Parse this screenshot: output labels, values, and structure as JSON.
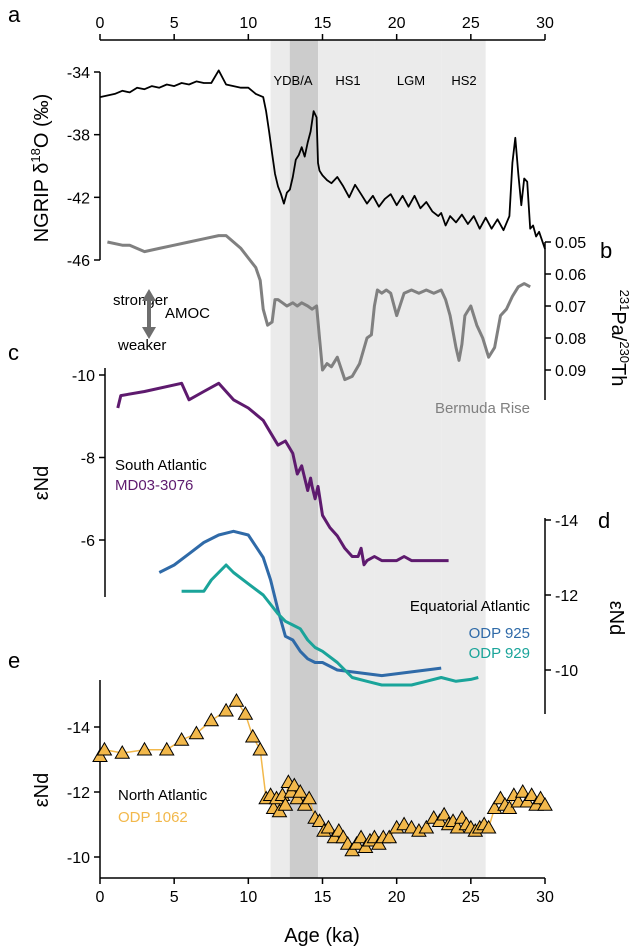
{
  "colors": {
    "ngrip": "#000000",
    "bermuda": "#808080",
    "md03": "#5e1a6e",
    "odp925": "#2f6aa8",
    "odp929": "#1aa49a",
    "odp1062": "#f2b84b",
    "band_light": "#ebebeb",
    "band_dark": "#cccccc",
    "arrow": "#6e6e6e"
  },
  "chart_data": {
    "x_axis": {
      "type": "linear",
      "range": [
        0,
        30
      ],
      "ticks": [
        0,
        5,
        10,
        15,
        20,
        25,
        30
      ],
      "tick_labels": [
        "0",
        "5",
        "10",
        "15",
        "20",
        "25",
        "30"
      ],
      "label": "Age (ka)",
      "top_ticks": true
    },
    "periods": [
      {
        "label": "YDB/A",
        "from": 11.5,
        "to": 14.7,
        "dark_from": 12.8,
        "dark_to": 14.7
      },
      {
        "label": "HS1",
        "from": 14.7,
        "to": 18.5
      },
      {
        "label": "LGM",
        "from": 18.5,
        "to": 23
      },
      {
        "label": "HS2",
        "from": 23,
        "to": 26
      }
    ],
    "panels": [
      {
        "letter": "a",
        "type": "line",
        "y_range": [
          -46,
          -34
        ],
        "y_ticks": [
          -34,
          -38,
          -42,
          -46
        ],
        "y_tick_labels": [
          "-34",
          "-38",
          "-42",
          "-46"
        ],
        "ylabel_main": "NGRIP δ",
        "ylabel_sup": "18",
        "ylabel_end": "O (‰)",
        "series": [
          {
            "name": "NGRIP",
            "x": [
              0,
              0.5,
              1,
              1.5,
              2,
              2.5,
              3,
              3.5,
              4,
              4.5,
              5,
              5.5,
              6,
              6.5,
              7,
              7.5,
              8,
              8.5,
              9,
              9.5,
              10,
              10.5,
              11,
              11.2,
              11.4,
              11.6,
              11.8,
              12,
              12.2,
              12.4,
              12.6,
              12.8,
              13,
              13.2,
              13.4,
              13.6,
              13.8,
              14,
              14.2,
              14.4,
              14.6,
              14.7,
              14.8,
              15,
              15.3,
              15.6,
              16,
              16.4,
              16.8,
              17.2,
              17.6,
              18,
              18.4,
              18.8,
              19.2,
              19.6,
              20,
              20.4,
              20.8,
              21.2,
              21.6,
              22,
              22.4,
              22.8,
              23,
              23.3,
              23.6,
              24,
              24.4,
              24.8,
              25.2,
              25.6,
              26,
              26.4,
              26.8,
              27.2,
              27.6,
              27.8,
              28,
              28.2,
              28.4,
              28.6,
              28.8,
              29,
              29.2,
              29.4,
              29.6,
              30
            ],
            "y": [
              -35.6,
              -35.5,
              -35.4,
              -35.2,
              -35.3,
              -35.0,
              -35.1,
              -34.9,
              -35.0,
              -34.8,
              -34.9,
              -34.7,
              -34.8,
              -34.6,
              -34.7,
              -34.7,
              -33.9,
              -34.8,
              -34.9,
              -35.0,
              -35.0,
              -35.4,
              -35.6,
              -36.5,
              -37.8,
              -39.2,
              -40.5,
              -41.3,
              -41.8,
              -42.4,
              -41.7,
              -41.5,
              -40.7,
              -39.6,
              -39.3,
              -38.8,
              -39.4,
              -38.5,
              -37.8,
              -36.5,
              -36.9,
              -39.8,
              -40.3,
              -40.6,
              -40.9,
              -41.1,
              -40.7,
              -41.3,
              -42.0,
              -41.2,
              -41.8,
              -42.4,
              -41.9,
              -42.6,
              -42.1,
              -41.8,
              -42.5,
              -41.9,
              -42.6,
              -41.9,
              -42.7,
              -42.3,
              -42.9,
              -43.2,
              -43.0,
              -43.8,
              -43.2,
              -43.6,
              -43.1,
              -43.7,
              -43.2,
              -44.0,
              -43.3,
              -44.0,
              -43.4,
              -44.1,
              -43.2,
              -39.8,
              -38.2,
              -40.5,
              -42.5,
              -40.8,
              -41.0,
              -44.0,
              -43.8,
              -44.5,
              -44.2,
              -45.3
            ]
          }
        ]
      },
      {
        "letter": "b",
        "type": "line",
        "y_range": [
          0.05,
          0.095
        ],
        "y_inverted": true,
        "y_ticks": [
          0.05,
          0.06,
          0.07,
          0.08,
          0.09
        ],
        "y_tick_labels": [
          "0.05",
          "0.06",
          "0.07",
          "0.08",
          "0.09"
        ],
        "ylabel_a": "231",
        "ylabel_b": "Pa/",
        "ylabel_c": "230",
        "ylabel_d": "Th",
        "annotation": "Bermuda Rise",
        "amoc": {
          "top": "stronger",
          "middle": "AMOC",
          "bottom": "weaker"
        },
        "series": [
          {
            "name": "Bermuda Rise",
            "x": [
              0.5,
              1.5,
              2,
              3,
              4,
              5,
              6,
              7,
              8,
              8.5,
              9,
              9.5,
              10,
              10.5,
              10.8,
              11,
              11.3,
              11.6,
              11.8,
              12,
              12.3,
              12.6,
              13,
              13.3,
              13.6,
              14,
              14.3,
              14.6,
              14.8,
              15,
              15.3,
              15.6,
              16,
              16.5,
              17,
              17.5,
              18,
              18.3,
              18.5,
              18.7,
              19,
              19.3,
              19.6,
              20,
              20.5,
              21,
              21.5,
              22,
              22.5,
              23,
              23.3,
              23.6,
              24,
              24.2,
              24.4,
              24.6,
              25,
              25.4,
              25.8,
              26.2,
              26.6,
              27,
              27.4,
              27.8,
              28.2,
              28.6,
              29
            ],
            "y": [
              0.05,
              0.051,
              0.051,
              0.053,
              0.052,
              0.051,
              0.05,
              0.049,
              0.048,
              0.048,
              0.05,
              0.052,
              0.055,
              0.058,
              0.062,
              0.071,
              0.076,
              0.075,
              0.068,
              0.068,
              0.069,
              0.07,
              0.069,
              0.07,
              0.069,
              0.07,
              0.071,
              0.07,
              0.08,
              0.09,
              0.088,
              0.089,
              0.086,
              0.093,
              0.092,
              0.088,
              0.08,
              0.079,
              0.07,
              0.065,
              0.066,
              0.065,
              0.066,
              0.073,
              0.066,
              0.065,
              0.066,
              0.065,
              0.066,
              0.065,
              0.068,
              0.073,
              0.083,
              0.087,
              0.082,
              0.073,
              0.07,
              0.076,
              0.08,
              0.086,
              0.083,
              0.073,
              0.071,
              0.067,
              0.064,
              0.063,
              0.064
            ]
          }
        ]
      },
      {
        "letter": "c",
        "type": "line",
        "y_range": [
          -10,
          -5
        ],
        "y_inverted": true,
        "y_ticks": [
          -10,
          -8,
          -6
        ],
        "y_tick_labels": [
          "-10",
          "-8",
          "-6"
        ],
        "ylabel": "εNd",
        "legend": {
          "title": "South Atlantic",
          "entry": "MD03-3076"
        },
        "series": [
          {
            "name": "MD03-3076",
            "x": [
              1.2,
              1.4,
              3,
              5.5,
              6,
              7,
              8,
              8.5,
              9,
              10,
              11,
              11.5,
              12,
              12.5,
              13,
              13.3,
              13.6,
              14,
              14.2,
              14.3,
              14.5,
              14.7,
              15,
              15.5,
              16,
              16.5,
              17,
              17.4,
              17.6,
              17.8,
              18,
              18.5,
              19,
              19.5,
              20,
              20.5,
              21,
              22,
              23.5
            ],
            "y": [
              -9.2,
              -9.5,
              -9.6,
              -9.8,
              -9.4,
              -9.6,
              -9.8,
              -9.6,
              -9.4,
              -9.2,
              -8.9,
              -8.6,
              -8.3,
              -8.4,
              -8.1,
              -7.6,
              -7.8,
              -7.2,
              -7.5,
              -7.3,
              -7.0,
              -7.3,
              -6.6,
              -6.3,
              -6.1,
              -5.8,
              -5.6,
              -5.6,
              -5.8,
              -5.4,
              -5.5,
              -5.6,
              -5.5,
              -5.5,
              -5.5,
              -5.6,
              -5.5,
              -5.5,
              -5.5
            ]
          }
        ]
      },
      {
        "letter": "d",
        "type": "line",
        "y_range": [
          -9.4,
          -14
        ],
        "y_ticks": [
          -14,
          -12,
          -10
        ],
        "y_tick_labels": [
          "-14",
          "-12",
          "-10"
        ],
        "ylabel": "εNd",
        "legend": {
          "title": "Equatorial Atlantic",
          "entries": [
            "ODP 925",
            "ODP 929"
          ]
        },
        "series": [
          {
            "name": "ODP 925",
            "x": [
              4,
              5,
              6,
              7,
              8,
              9,
              10,
              10.5,
              11,
              11.5,
              12,
              12.5,
              13,
              13.5,
              14,
              14.5,
              15,
              16,
              17,
              18,
              19,
              20,
              21,
              22,
              23
            ],
            "y": [
              -12.6,
              -12.8,
              -13.1,
              -13.4,
              -13.6,
              -13.7,
              -13.6,
              -13.3,
              -13.0,
              -12.4,
              -11.6,
              -10.9,
              -10.8,
              -10.5,
              -10.3,
              -10.2,
              -10.2,
              -10.0,
              -9.95,
              -9.9,
              -9.85,
              -9.9,
              -9.95,
              -10.0,
              -10.05
            ]
          },
          {
            "name": "ODP 929",
            "x": [
              5.5,
              6,
              7,
              7.5,
              8,
              8.5,
              9,
              10,
              11,
              12,
              12.5,
              13,
              13.5,
              14,
              14.5,
              15,
              16,
              17,
              18,
              19,
              20,
              21,
              22,
              23,
              24,
              25,
              25.5
            ],
            "y": [
              -12.1,
              -12.1,
              -12.1,
              -12.4,
              -12.6,
              -12.8,
              -12.6,
              -12.3,
              -12.0,
              -11.5,
              -11.3,
              -11.2,
              -11.1,
              -10.8,
              -10.6,
              -10.5,
              -10.2,
              -9.8,
              -9.7,
              -9.6,
              -9.6,
              -9.6,
              -9.7,
              -9.8,
              -9.7,
              -9.75,
              -9.8
            ]
          }
        ]
      },
      {
        "letter": "e",
        "type": "line-marker",
        "y_range": [
          -9.7,
          -15.5
        ],
        "y_ticks": [
          -14,
          -12,
          -10
        ],
        "y_tick_labels": [
          "-14",
          "-12",
          "-10"
        ],
        "ylabel": "εNd",
        "legend": {
          "title": "North Atlantic",
          "entry": "ODP 1062"
        },
        "series": [
          {
            "name": "ODP 1062",
            "marker": "triangle",
            "x": [
              0,
              0.3,
              1.5,
              3,
              4.5,
              5.5,
              6.5,
              7.5,
              8.5,
              9.2,
              9.8,
              10.3,
              10.8,
              11.2,
              11.5,
              11.7,
              11.9,
              12.1,
              12.3,
              12.5,
              12.7,
              12.9,
              13.1,
              13.3,
              13.5,
              13.8,
              14.1,
              14.5,
              14.8,
              15.1,
              15.4,
              15.8,
              16.1,
              16.4,
              16.7,
              17.0,
              17.3,
              17.6,
              17.9,
              18.2,
              18.5,
              18.8,
              19.1,
              19.5,
              20,
              20.5,
              21,
              21.5,
              22,
              22.5,
              22.9,
              23.2,
              23.5,
              23.8,
              24.1,
              24.4,
              24.7,
              25.0,
              25.3,
              25.6,
              25.9,
              26.2,
              26.6,
              27,
              27.3,
              27.6,
              27.9,
              28.2,
              28.5,
              28.8,
              29.1,
              29.4,
              29.7,
              30
            ],
            "y": [
              -13.1,
              -13.3,
              -13.2,
              -13.3,
              -13.3,
              -13.6,
              -13.8,
              -14.2,
              -14.5,
              -14.8,
              -14.4,
              -13.7,
              -13.3,
              -11.8,
              -11.9,
              -11.5,
              -11.8,
              -11.4,
              -11.9,
              -11.6,
              -12.3,
              -12.0,
              -12.2,
              -11.8,
              -12.0,
              -11.6,
              -11.8,
              -11.2,
              -11.1,
              -10.8,
              -10.9,
              -10.6,
              -10.8,
              -10.6,
              -10.4,
              -10.2,
              -10.4,
              -10.6,
              -10.3,
              -10.5,
              -10.6,
              -10.4,
              -10.6,
              -10.6,
              -10.9,
              -11.0,
              -10.9,
              -10.8,
              -10.9,
              -11.2,
              -11.1,
              -11.3,
              -11.0,
              -11.1,
              -10.9,
              -11.2,
              -11.0,
              -10.9,
              -10.8,
              -10.9,
              -11.0,
              -10.9,
              -11.5,
              -11.8,
              -11.6,
              -11.5,
              -11.9,
              -11.7,
              -12.0,
              -11.7,
              -11.9,
              -11.6,
              -11.8,
              -11.6
            ]
          }
        ]
      }
    ]
  }
}
